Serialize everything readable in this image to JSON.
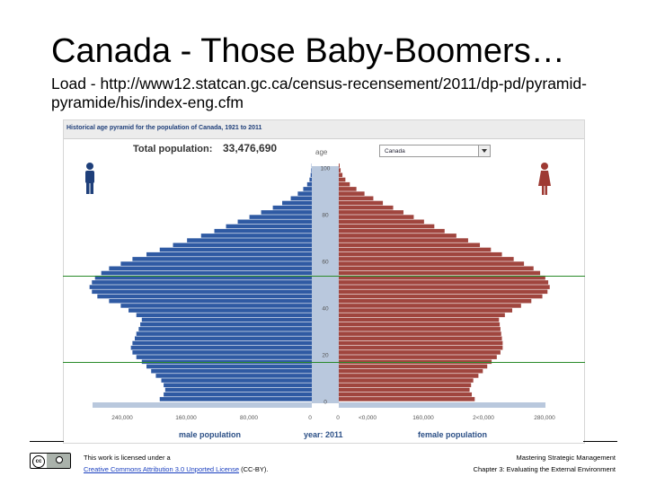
{
  "slide": {
    "title": "Canada - Those Baby-Boomers…",
    "subtitle": "Load - http://www12.statcan.gc.ca/census-recensement/2011/dp-pd/pyramid-pyramide/his/index-eng.cfm"
  },
  "panel": {
    "title": "Historical age pyramid for the population of Canada, 1921 to 2011",
    "population_label": "Total population:",
    "population_value": "33,476,690",
    "age_label": "age",
    "region_selected": "Canada",
    "male_title": "male population",
    "year_title": "year: 2011",
    "female_title": "female population",
    "icons": [
      "male-figure-icon",
      "female-figure-icon"
    ]
  },
  "colors": {
    "male": "#2f5aa3",
    "female": "#a0453e",
    "axis_band": "#b9c8dd",
    "highlight_line": "#2a8a2a"
  },
  "chart_data": {
    "type": "bar",
    "orientation": "horizontal",
    "year": 2011,
    "y_axis": {
      "label": "age",
      "ticks": [
        0,
        20,
        40,
        60,
        80,
        100
      ],
      "range": [
        0,
        100
      ]
    },
    "male_axis": {
      "ticks": [
        "240,000",
        "160,000",
        "80,000",
        "0"
      ],
      "range": [
        0,
        280000
      ]
    },
    "female_axis": {
      "ticks": [
        "0",
        "<0,000",
        "160,000",
        "2<0,000",
        "280,000"
      ],
      "range": [
        0,
        280000
      ]
    },
    "highlight_ages": [
      27,
      64
    ],
    "ages": [
      0,
      2,
      4,
      6,
      8,
      10,
      12,
      14,
      16,
      18,
      20,
      22,
      24,
      26,
      28,
      30,
      32,
      34,
      36,
      38,
      40,
      42,
      44,
      46,
      48,
      50,
      52,
      54,
      56,
      58,
      60,
      62,
      64,
      66,
      68,
      70,
      72,
      74,
      76,
      78,
      80,
      82,
      84,
      86,
      88,
      90,
      92,
      94,
      96,
      98,
      100
    ],
    "series": [
      {
        "name": "male",
        "values": [
          195000,
          190000,
          188000,
          190000,
          193000,
          200000,
          206000,
          212000,
          218000,
          225000,
          230000,
          232000,
          230000,
          227000,
          225000,
          222000,
          220000,
          218000,
          225000,
          235000,
          245000,
          260000,
          275000,
          282000,
          285000,
          282000,
          278000,
          270000,
          260000,
          245000,
          230000,
          212000,
          195000,
          178000,
          160000,
          142000,
          125000,
          110000,
          95000,
          80000,
          65000,
          50000,
          38000,
          27000,
          18000,
          11000,
          6000,
          3000,
          1500,
          700,
          300
        ]
      },
      {
        "name": "female",
        "values": [
          185000,
          181000,
          178000,
          180000,
          183000,
          190000,
          196000,
          202000,
          208000,
          215000,
          220000,
          223000,
          223000,
          222000,
          221000,
          220000,
          219000,
          218000,
          226000,
          236000,
          248000,
          262000,
          277000,
          284000,
          287000,
          285000,
          281000,
          274000,
          265000,
          252000,
          238000,
          222000,
          207000,
          192000,
          176000,
          160000,
          144000,
          130000,
          116000,
          102000,
          88000,
          74000,
          60000,
          47000,
          35000,
          24000,
          15000,
          9000,
          5000,
          2500,
          1200
        ]
      }
    ]
  },
  "footer": {
    "license_line1": "This work is licensed under a",
    "license_link": "Creative Commons Attribution 3.0 Unported License",
    "license_suffix": " (CC-BY).",
    "right_line1": "Mastering Strategic Management",
    "right_line2": "Chapter 3: Evaluating the External Environment",
    "badge_text": "cc"
  }
}
